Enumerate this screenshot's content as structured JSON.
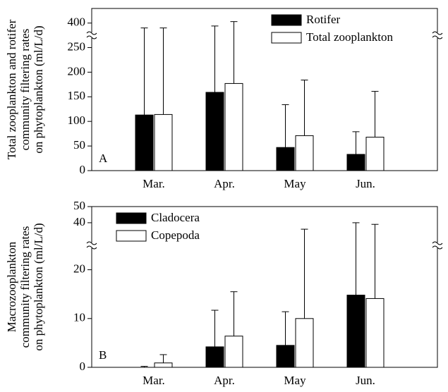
{
  "chart_data": [
    {
      "type": "bar",
      "ylabel": [
        "Total zooplankton and rotifer",
        "community filtering rates",
        "on phytoplankton (ml/L/d)"
      ],
      "panel_label": "A",
      "categories": [
        "Mar.",
        "Apr.",
        "May",
        "Jun."
      ],
      "series": [
        {
          "name": "Rotifer",
          "color": "#000000",
          "values": [
            113,
            159,
            47,
            33
          ],
          "errors": [
            277,
            235,
            87,
            46
          ]
        },
        {
          "name": "Total zooplankton",
          "color": "#ffffff",
          "values": [
            114,
            177,
            71,
            68
          ],
          "errors": [
            276,
            226,
            113,
            93
          ]
        }
      ],
      "ylim": [
        0,
        430
      ],
      "yticks": [
        0,
        50,
        100,
        150,
        200,
        250,
        400
      ],
      "ybreak": [
        275,
        375
      ],
      "legend": "upper right"
    },
    {
      "type": "bar",
      "ylabel": [
        "Macrozooplankton",
        "community filtering rates",
        "on phytoplankton (ml/L/d)"
      ],
      "panel_label": "B",
      "categories": [
        "Mar.",
        "Apr.",
        "May",
        "Jun."
      ],
      "series": [
        {
          "name": "Cladocera",
          "color": "#000000",
          "values": [
            0,
            4.2,
            4.5,
            14.8
          ],
          "errors": [
            0.2,
            7.5,
            6.9,
            25.2
          ]
        },
        {
          "name": "Copepoda",
          "color": "#ffffff",
          "values": [
            0.9,
            6.4,
            10.0,
            14.1
          ],
          "errors": [
            1.7,
            9.1,
            26,
            24.9
          ]
        }
      ],
      "ylim": [
        0,
        50
      ],
      "yticks": [
        0,
        10,
        20,
        40,
        50
      ],
      "ybreak": [
        25,
        26
      ],
      "legend": "upper left"
    }
  ]
}
